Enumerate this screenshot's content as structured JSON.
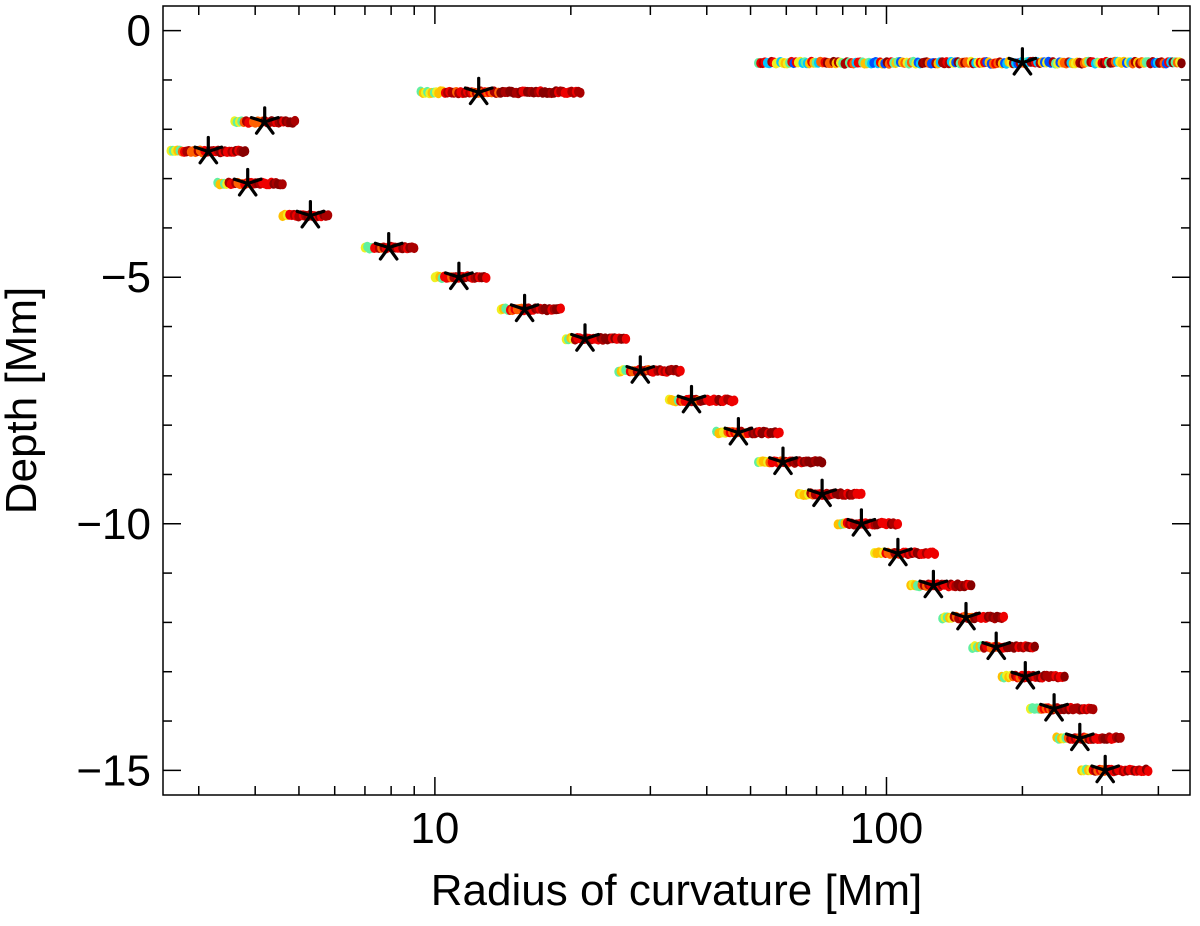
{
  "chart_data": {
    "type": "scatter",
    "title": "",
    "xlabel": "Radius of curvature [Mm]",
    "ylabel": "Depth [Mm]",
    "x_scale": "log",
    "xlim": [
      2.5,
      470
    ],
    "ylim": [
      -15.5,
      0.5
    ],
    "x_major_ticks": [
      10,
      100
    ],
    "x_tick_labels": [
      "10",
      "100"
    ],
    "y_major_ticks": [
      0,
      -5,
      -10,
      -15
    ],
    "y_tick_labels": [
      "0",
      "−5",
      "−10",
      "−15"
    ],
    "y_minor_step": 1,
    "grid": false,
    "legend": "none",
    "star_color": "#000000",
    "dot_palette": [
      "#0050ff",
      "#00c8ff",
      "#60f0a0",
      "#f0f020",
      "#ffc000",
      "#ff6000",
      "#ee0000",
      "#aa0000",
      "#880000"
    ],
    "rows": [
      {
        "depth": -0.65,
        "star_x": 200,
        "spread": [
          52,
          450
        ]
      },
      {
        "depth": -1.25,
        "star_x": 12.5,
        "spread": [
          9.3,
          21
        ]
      },
      {
        "depth": -1.85,
        "star_x": 4.2,
        "spread": [
          3.6,
          4.9
        ]
      },
      {
        "depth": -2.45,
        "star_x": 3.15,
        "spread": [
          2.6,
          3.8
        ]
      },
      {
        "depth": -3.1,
        "star_x": 3.85,
        "spread": [
          3.3,
          4.6
        ]
      },
      {
        "depth": -3.75,
        "star_x": 5.3,
        "spread": [
          4.6,
          5.8
        ]
      },
      {
        "depth": -4.4,
        "star_x": 7.9,
        "spread": [
          7.0,
          9.0
        ]
      },
      {
        "depth": -5.0,
        "star_x": 11.3,
        "spread": [
          10.0,
          13.0
        ]
      },
      {
        "depth": -5.65,
        "star_x": 15.8,
        "spread": [
          14.0,
          19.0
        ]
      },
      {
        "depth": -6.25,
        "star_x": 21.5,
        "spread": [
          19.5,
          26.5
        ]
      },
      {
        "depth": -6.9,
        "star_x": 28.5,
        "spread": [
          25.5,
          35.0
        ]
      },
      {
        "depth": -7.5,
        "star_x": 37.0,
        "spread": [
          33.0,
          46.0
        ]
      },
      {
        "depth": -8.15,
        "star_x": 47.0,
        "spread": [
          42.0,
          58.0
        ]
      },
      {
        "depth": -8.75,
        "star_x": 59.0,
        "spread": [
          52.0,
          72.0
        ]
      },
      {
        "depth": -9.4,
        "star_x": 72.0,
        "spread": [
          64.0,
          88.0
        ]
      },
      {
        "depth": -10.0,
        "star_x": 88.0,
        "spread": [
          78.0,
          106.0
        ]
      },
      {
        "depth": -10.6,
        "star_x": 106.0,
        "spread": [
          94.0,
          128.0
        ]
      },
      {
        "depth": -11.25,
        "star_x": 127.0,
        "spread": [
          113.0,
          154.0
        ]
      },
      {
        "depth": -11.9,
        "star_x": 150.0,
        "spread": [
          133.0,
          182.0
        ]
      },
      {
        "depth": -12.5,
        "star_x": 175.0,
        "spread": [
          155.0,
          213.0
        ]
      },
      {
        "depth": -13.1,
        "star_x": 203.0,
        "spread": [
          180.0,
          248.0
        ]
      },
      {
        "depth": -13.75,
        "star_x": 235.0,
        "spread": [
          208.0,
          287.0
        ]
      },
      {
        "depth": -14.35,
        "star_x": 268.0,
        "spread": [
          238.0,
          330.0
        ]
      },
      {
        "depth": -15.0,
        "star_x": 305.0,
        "spread": [
          270.0,
          380.0
        ]
      }
    ]
  }
}
